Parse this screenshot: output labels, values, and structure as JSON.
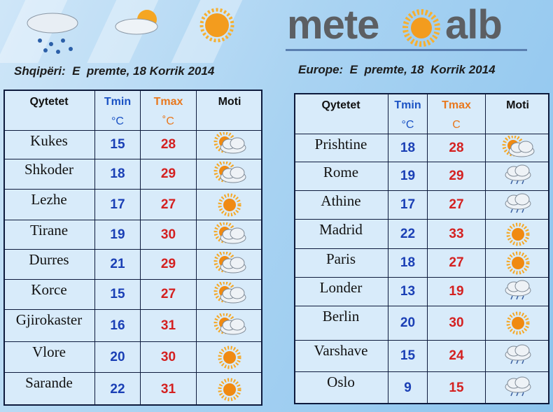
{
  "header": {
    "logo_left": "mete",
    "logo_right": "alb"
  },
  "tables": [
    {
      "title": "Shqipëri:  E  premte, 18 Korrik 2014",
      "city": "Qytetet",
      "tmin": "Tmin",
      "tmin_unit": "°C",
      "tmax": "Tmax",
      "tmax_unit": "˚C",
      "weather": "Moti",
      "rows": [
        [
          "Kukes",
          15,
          28
        ],
        [
          "Shkoder",
          18,
          29
        ],
        [
          "Lezhe",
          17,
          27
        ],
        [
          "Tirane",
          19,
          30
        ],
        [
          "Durres",
          21,
          29
        ],
        [
          "Korce",
          15,
          27
        ],
        [
          "Gjirokaster",
          16,
          31
        ],
        [
          "Vlore",
          20,
          30
        ],
        [
          "Sarande",
          22,
          31
        ]
      ]
    },
    {
      "title": "Europe:  E  premte, 18  Korrik 2014",
      "city": "Qytetet",
      "tmin": "Tmin",
      "tmin_unit": "°C",
      "tmax": "Tmax",
      "tmax_unit": "C",
      "weather": "Moti",
      "rows": [
        [
          "Prishtine",
          18,
          28
        ],
        [
          "Rome",
          19,
          29
        ],
        [
          "Athine",
          17,
          27
        ],
        [
          "Madrid",
          22,
          33
        ],
        [
          "Paris",
          18,
          27
        ],
        [
          "Londer",
          13,
          19
        ],
        [
          "Berlin",
          20,
          30
        ],
        [
          "Varshave",
          15,
          24
        ],
        [
          "Oslo",
          9,
          15
        ]
      ]
    }
  ]
}
